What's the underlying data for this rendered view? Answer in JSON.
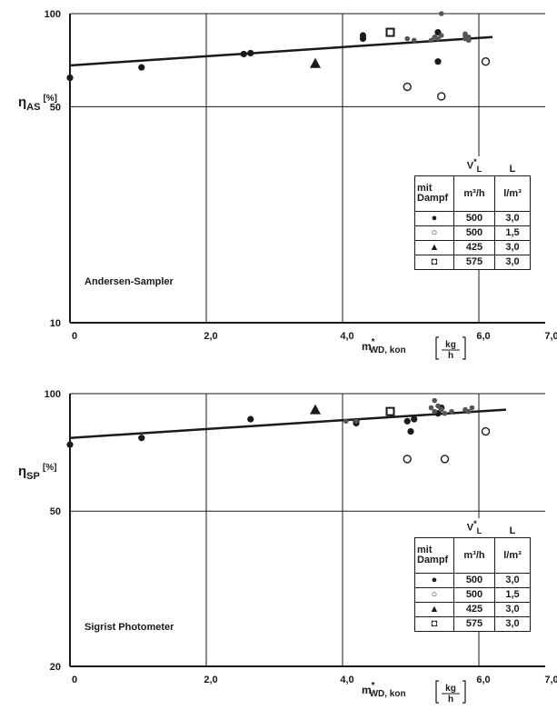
{
  "chart_data": [
    {
      "type": "scatter",
      "plot_label": "Andersen-Sampler",
      "ylabel_main": "η",
      "ylabel_sub": "AS",
      "ylabel_unit": "[%]",
      "xlabel_main": "m",
      "xlabel_star": "*",
      "xlabel_sub": "WD, kon",
      "xlabel_unit_num": "kg",
      "xlabel_unit_den": "h",
      "y_scale": "log",
      "ylim": [
        10,
        100
      ],
      "yticks": [
        10,
        50,
        100
      ],
      "ytick_labels": [
        "10",
        "50",
        "100"
      ],
      "xlim": [
        0,
        7.0
      ],
      "xticks": [
        0,
        2,
        4,
        6,
        7
      ],
      "xtick_labels": [
        "0",
        "2,0",
        "4,0",
        "6,0",
        "7,0"
      ],
      "grid": true,
      "trend_line": {
        "x": [
          0.0,
          6.2
        ],
        "y": [
          68,
          84
        ]
      },
      "series": [
        {
          "name": "500 3,0",
          "marker": "filled-circle",
          "x": [
            0.0,
            1.05,
            2.55,
            2.65,
            4.3,
            4.3,
            5.4,
            5.4
          ],
          "y": [
            62,
            67,
            74,
            74.5,
            83,
            85,
            87,
            70
          ]
        },
        {
          "name": "500 1,5",
          "marker": "open-circle",
          "x": [
            4.95,
            5.45,
            6.1
          ],
          "y": [
            58,
            54,
            70
          ]
        },
        {
          "name": "425 3,0",
          "marker": "triangle",
          "x": [
            3.6
          ],
          "y": [
            69
          ]
        },
        {
          "name": "575 3,0",
          "marker": "open-square",
          "x": [
            4.7
          ],
          "y": [
            87
          ]
        },
        {
          "name": "cluster",
          "marker": "small-dot",
          "x": [
            4.95,
            5.05,
            5.3,
            5.35,
            5.4,
            5.45,
            5.8,
            5.85,
            5.8,
            5.85,
            5.8,
            5.45
          ],
          "y": [
            83,
            82,
            82,
            84,
            83,
            85,
            86,
            84,
            83,
            82,
            85,
            100
          ]
        }
      ],
      "legend": {
        "header_col1_top": "mit",
        "header_col1_bottom": "Dampf",
        "header_col2_top": "V",
        "header_col2_star": "*",
        "header_col2_sub": "L",
        "header_col2_unit": "m³/h",
        "header_col3_top": "L",
        "header_col3_unit": "l/m³",
        "rows": [
          {
            "symbol": "●",
            "v": "500",
            "l": "3,0"
          },
          {
            "symbol": "○",
            "v": "500",
            "l": "1,5"
          },
          {
            "symbol": "▲",
            "v": "425",
            "l": "3,0"
          },
          {
            "symbol": "◘",
            "v": "575",
            "l": "3,0"
          }
        ]
      }
    },
    {
      "type": "scatter",
      "plot_label": "Sigrist   Photometer",
      "ylabel_main": "η",
      "ylabel_sub": "SP",
      "ylabel_unit": "[%]",
      "xlabel_main": "m",
      "xlabel_star": "*",
      "xlabel_sub": "WD, kon",
      "xlabel_unit_num": "kg",
      "xlabel_unit_den": "h",
      "y_scale": "log",
      "ylim": [
        20,
        100
      ],
      "yticks": [
        20,
        50,
        100
      ],
      "ytick_labels": [
        "20",
        "50",
        "100"
      ],
      "xlim": [
        0,
        7.0
      ],
      "xticks": [
        0,
        2,
        4,
        6,
        7
      ],
      "xtick_labels": [
        "0",
        "2,0",
        "4,0",
        "6,0",
        "7,0"
      ],
      "grid": true,
      "trend_line": {
        "x": [
          0.0,
          6.4
        ],
        "y": [
          77,
          91
        ]
      },
      "series": [
        {
          "name": "500 3,0",
          "marker": "filled-circle",
          "x": [
            0.0,
            1.05,
            2.65,
            4.2,
            4.2,
            4.95,
            5.05,
            5.0,
            5.4,
            5.45
          ],
          "y": [
            74,
            77,
            86,
            84,
            85,
            85,
            86,
            80,
            89,
            92
          ]
        },
        {
          "name": "500 1,5",
          "marker": "open-circle",
          "x": [
            4.95,
            5.5,
            6.1
          ],
          "y": [
            68,
            68,
            80
          ]
        },
        {
          "name": "425 3,0",
          "marker": "triangle",
          "x": [
            3.6
          ],
          "y": [
            91
          ]
        },
        {
          "name": "575 3,0",
          "marker": "open-square",
          "x": [
            4.7
          ],
          "y": [
            90
          ]
        },
        {
          "name": "cluster",
          "marker": "small-dot",
          "x": [
            4.05,
            4.2,
            5.3,
            5.35,
            5.4,
            5.45,
            5.5,
            5.6,
            5.8,
            5.85,
            5.9,
            5.35
          ],
          "y": [
            85,
            85,
            92,
            90,
            93,
            91,
            89,
            90,
            91,
            90,
            92,
            96
          ]
        }
      ],
      "legend": {
        "header_col1_top": "mit",
        "header_col1_bottom": "Dampf",
        "header_col2_top": "V",
        "header_col2_star": "*",
        "header_col2_sub": "L",
        "header_col2_unit": "m³/h",
        "header_col3_top": "L",
        "header_col3_unit": "l/m³",
        "rows": [
          {
            "symbol": "●",
            "v": "500",
            "l": "3,0"
          },
          {
            "symbol": "○",
            "v": "500",
            "l": "1,5"
          },
          {
            "symbol": "▲",
            "v": "425",
            "l": "3,0"
          },
          {
            "symbol": "◘",
            "v": "575",
            "l": "3,0"
          }
        ]
      }
    }
  ]
}
